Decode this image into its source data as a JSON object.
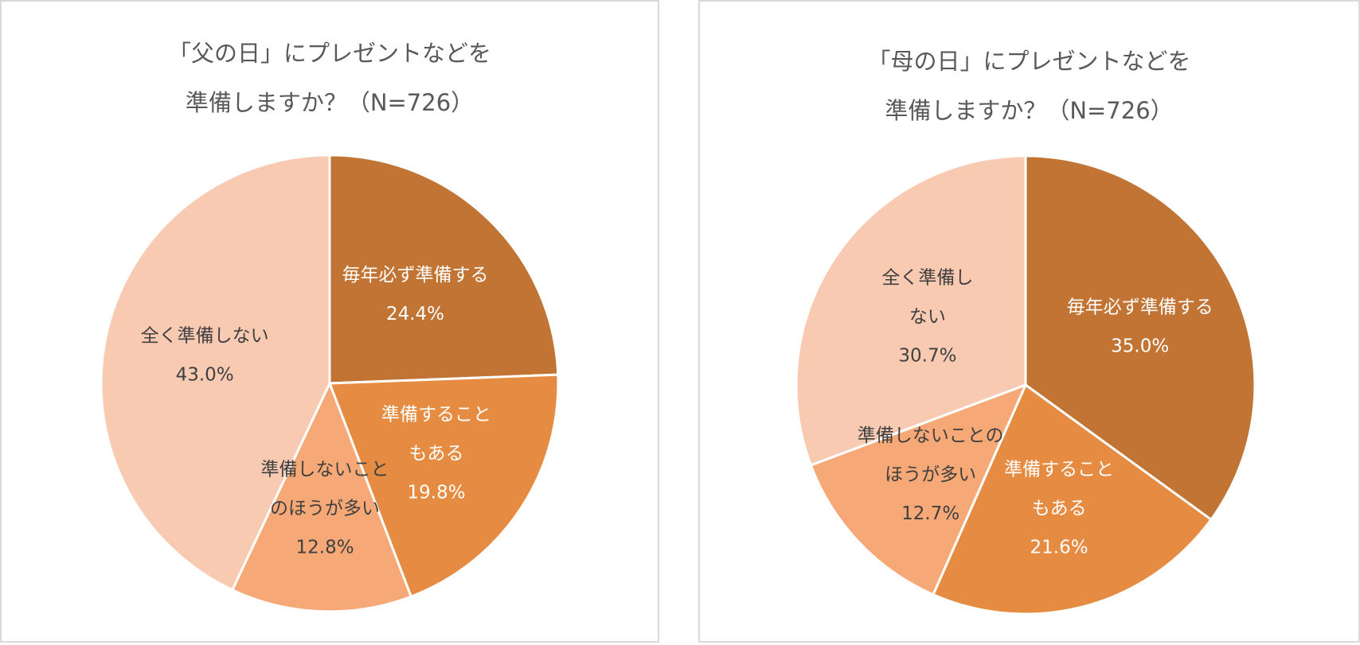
{
  "chart_data": [
    {
      "type": "pie",
      "title_lines": [
        "「父の日」にプレゼントなどを",
        "準備しますか？（N=726）"
      ],
      "start_angle_deg": 0,
      "direction": "clockwise",
      "slices": [
        {
          "label_lines": [
            "毎年必ず準備する"
          ],
          "value": 24.4,
          "value_label": "24.4%",
          "color": "#c17433",
          "text_color": "#ffffff"
        },
        {
          "label_lines": [
            "準備すること",
            "もある"
          ],
          "value": 19.8,
          "value_label": "19.8%",
          "color": "#e68c42",
          "text_color": "#ffffff"
        },
        {
          "label_lines": [
            "準備しないこと",
            "のほうが多い"
          ],
          "value": 12.8,
          "value_label": "12.8%",
          "color": "#f6a977",
          "text_color": "#404040"
        },
        {
          "label_lines": [
            "全く準備しない"
          ],
          "value": 43.0,
          "value_label": "43.0%",
          "color": "#f8cab2",
          "text_color": "#404040"
        }
      ]
    },
    {
      "type": "pie",
      "title_lines": [
        "「母の日」にプレゼントなどを",
        "準備しますか？（N=726）"
      ],
      "start_angle_deg": 0,
      "direction": "clockwise",
      "slices": [
        {
          "label_lines": [
            "毎年必ず準備する"
          ],
          "value": 35.0,
          "value_label": "35.0%",
          "color": "#c17433",
          "text_color": "#ffffff"
        },
        {
          "label_lines": [
            "準備すること",
            "もある"
          ],
          "value": 21.6,
          "value_label": "21.6%",
          "color": "#e68c42",
          "text_color": "#ffffff"
        },
        {
          "label_lines": [
            "準備しないことの",
            "ほうが多い"
          ],
          "value": 12.7,
          "value_label": "12.7%",
          "color": "#f6a977",
          "text_color": "#404040"
        },
        {
          "label_lines": [
            "全く準備し",
            "ない"
          ],
          "value": 30.7,
          "value_label": "30.7%",
          "color": "#f8cab2",
          "text_color": "#404040"
        }
      ]
    }
  ]
}
